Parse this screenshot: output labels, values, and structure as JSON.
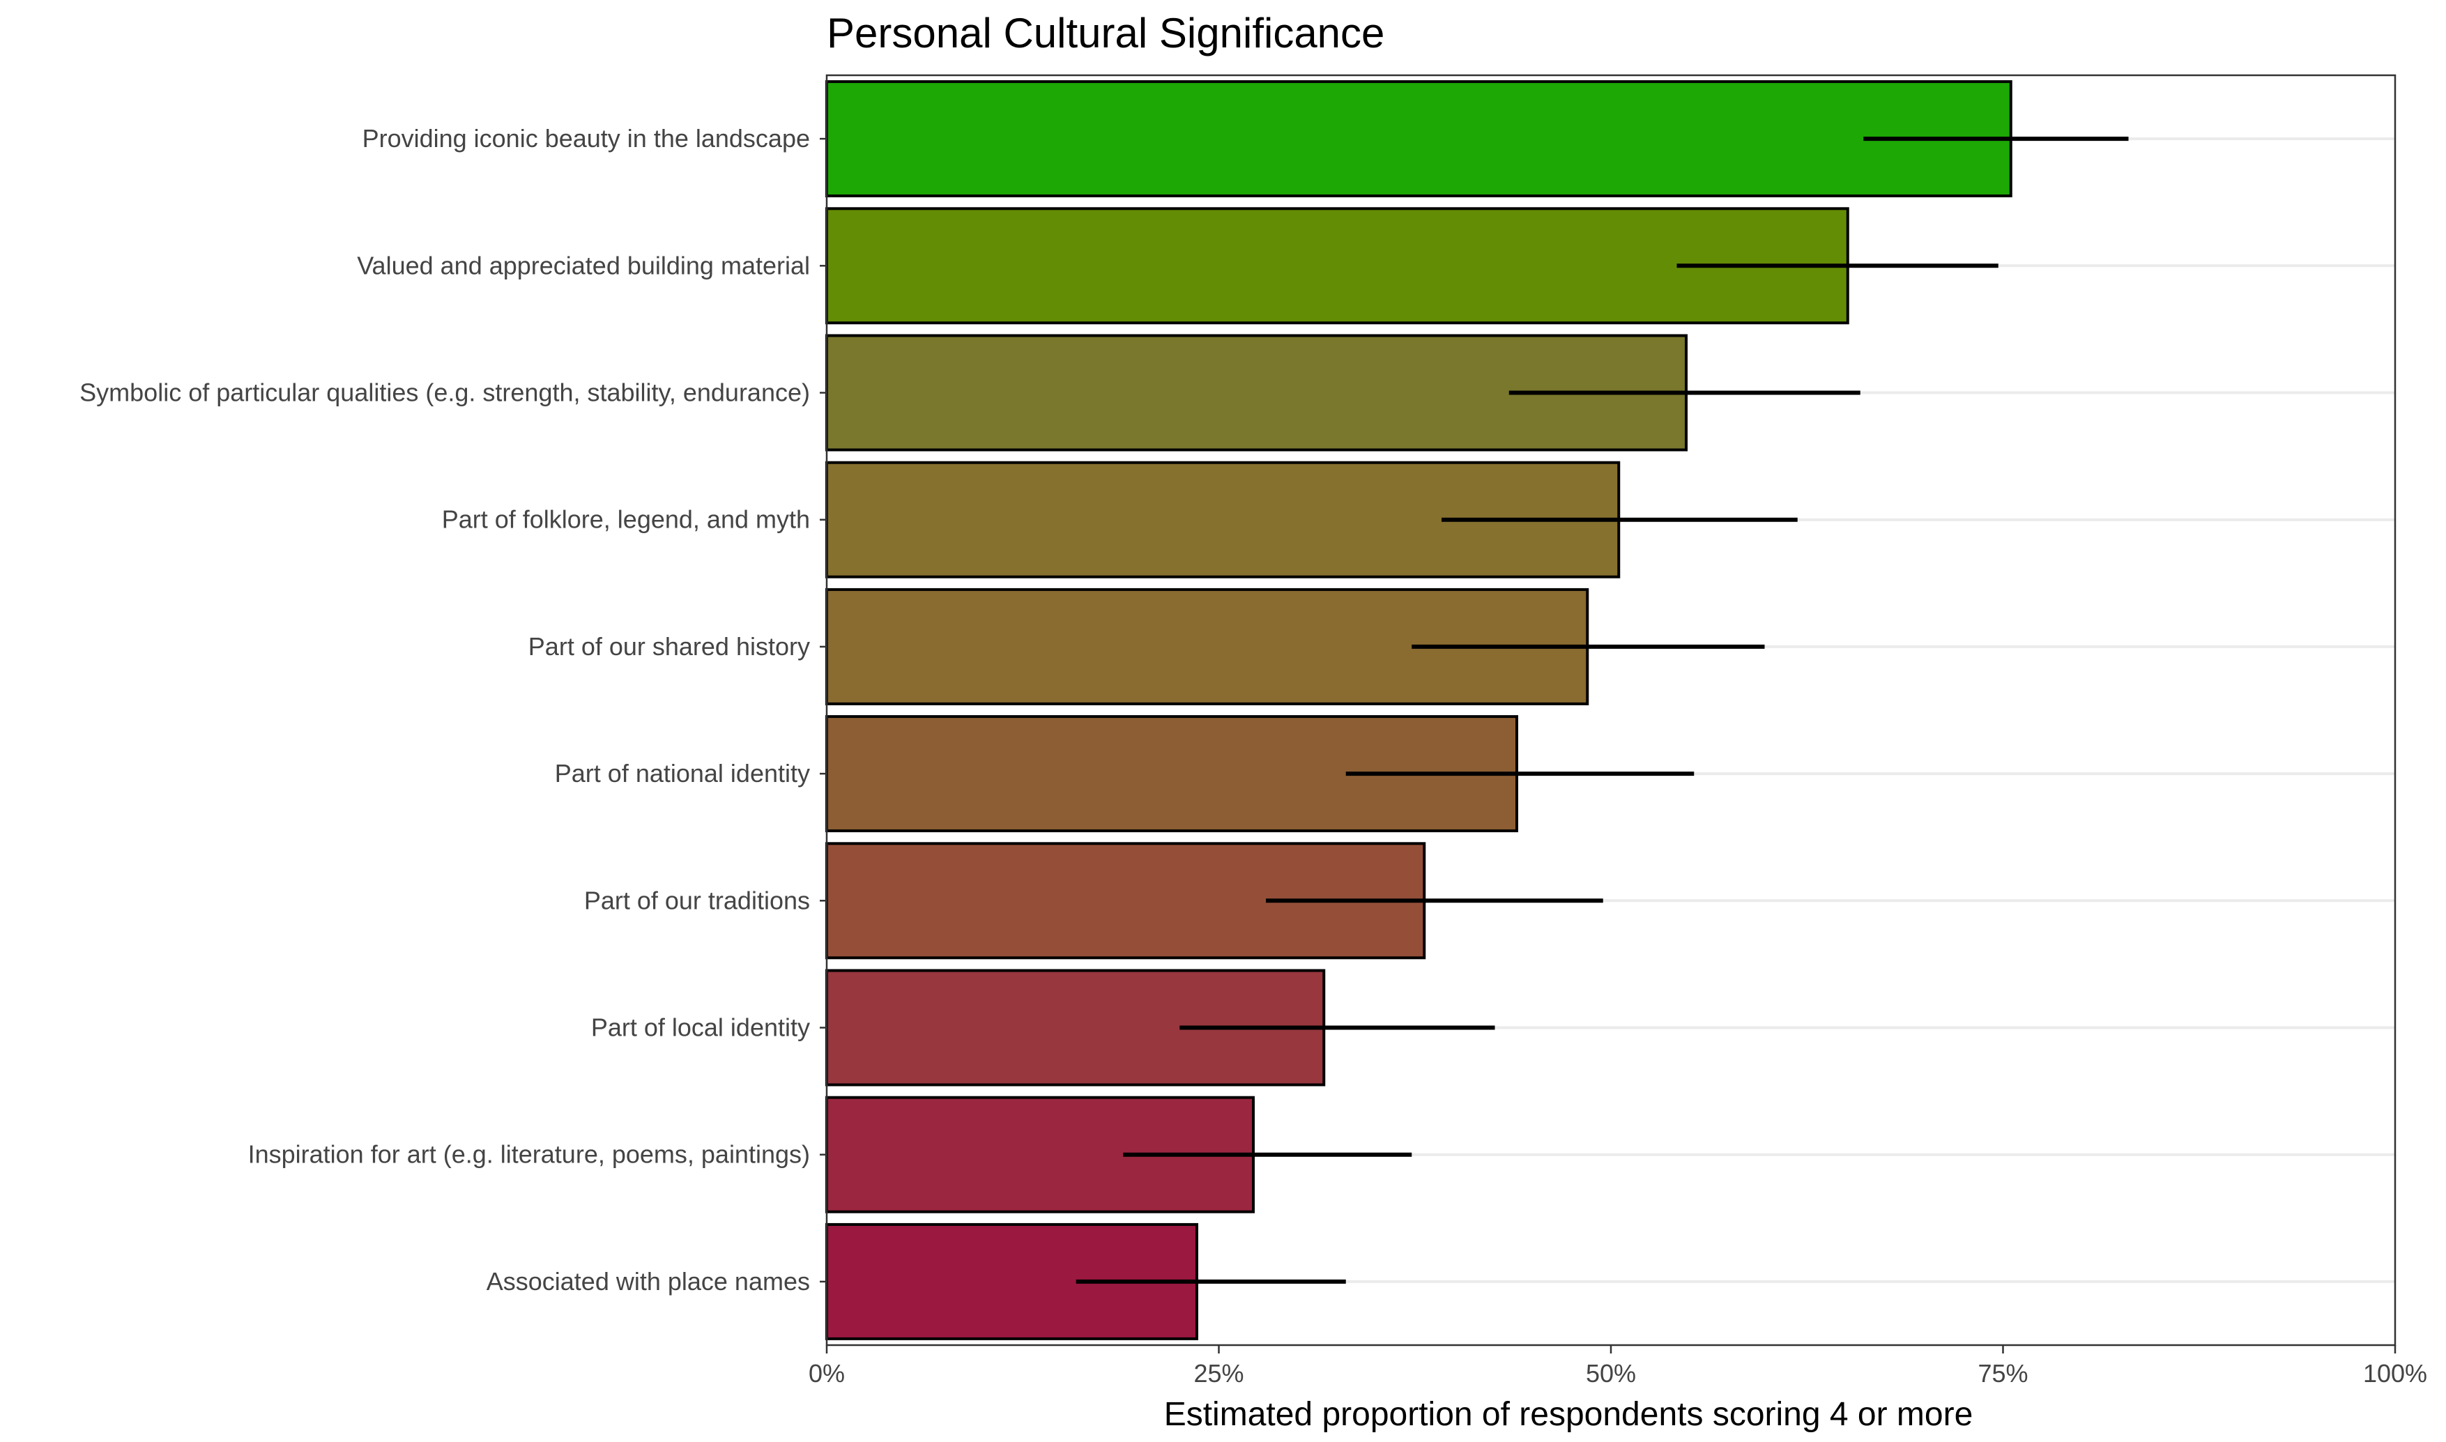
{
  "chart_data": {
    "type": "bar",
    "orientation": "horizontal",
    "title": "Personal Cultural Significance",
    "xlabel": "Estimated proportion of respondents scoring 4 or more",
    "ylabel": "",
    "xlim": [
      0,
      1
    ],
    "xticks": [
      0,
      0.25,
      0.5,
      0.75,
      1.0
    ],
    "xtick_labels": [
      "0%",
      "25%",
      "50%",
      "75%",
      "100%"
    ],
    "grid": true,
    "categories": [
      "Providing iconic beauty in the landscape",
      "Valued and appreciated building material",
      "Symbolic of particular qualities (e.g. strength, stability, endurance)",
      "Part of folklore, legend, and myth",
      "Part of our shared history",
      "Part of national identity",
      "Part of our traditions",
      "Part of local identity",
      "Inspiration for art (e.g. literature, poems, paintings)",
      "Associated with place names"
    ],
    "values": [
      0.755,
      0.651,
      0.548,
      0.505,
      0.485,
      0.44,
      0.381,
      0.317,
      0.272,
      0.236
    ],
    "ci_low": [
      0.661,
      0.542,
      0.435,
      0.392,
      0.373,
      0.331,
      0.28,
      0.225,
      0.189,
      0.159
    ],
    "ci_high": [
      0.83,
      0.747,
      0.659,
      0.619,
      0.598,
      0.553,
      0.495,
      0.426,
      0.373,
      0.331
    ],
    "colors": [
      "#1da805",
      "#648d06",
      "#79782c",
      "#87712f",
      "#8a6b30",
      "#8d5e33",
      "#954f39",
      "#98373e",
      "#9b2640",
      "#9b1840"
    ]
  }
}
